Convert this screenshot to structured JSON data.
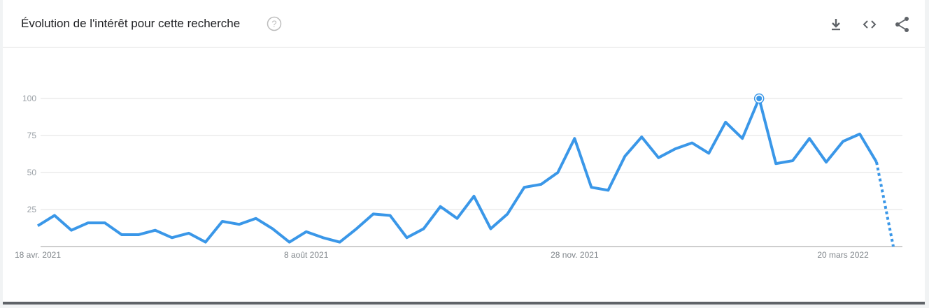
{
  "header": {
    "title": "Évolution de l'intérêt pour cette recherche",
    "help_icon": "help-circle-icon",
    "actions": [
      {
        "name": "download-icon"
      },
      {
        "name": "embed-code-icon"
      },
      {
        "name": "share-icon"
      }
    ]
  },
  "colors": {
    "line": "#3a97e8",
    "grid": "#e0e0e0",
    "axis": "#9e9e9e"
  },
  "chart_data": {
    "type": "line",
    "title": "Évolution de l'intérêt pour cette recherche",
    "xlabel": "",
    "ylabel": "",
    "ylim": [
      0,
      100
    ],
    "yticks": [
      25,
      50,
      75,
      100
    ],
    "xtick_labels": [
      {
        "label": "18 avr. 2021",
        "index": 0
      },
      {
        "label": "8 août 2021",
        "index": 16
      },
      {
        "label": "28 nov. 2021",
        "index": 32
      },
      {
        "label": "20 mars 2022",
        "index": 48
      }
    ],
    "grid": true,
    "legend": "none",
    "series": [
      {
        "values": [
          14,
          21,
          11,
          16,
          16,
          8,
          8,
          11,
          6,
          9,
          3,
          17,
          15,
          19,
          12,
          3,
          10,
          6,
          3,
          12,
          22,
          21,
          6,
          12,
          27,
          19,
          34,
          12,
          22,
          40,
          42,
          50,
          73,
          40,
          38,
          61,
          74,
          60,
          66,
          70,
          63,
          84,
          73,
          100,
          56,
          58,
          73,
          57,
          71,
          76,
          57,
          0
        ],
        "partial_from_index": 50,
        "highlight_index": 43
      }
    ]
  }
}
